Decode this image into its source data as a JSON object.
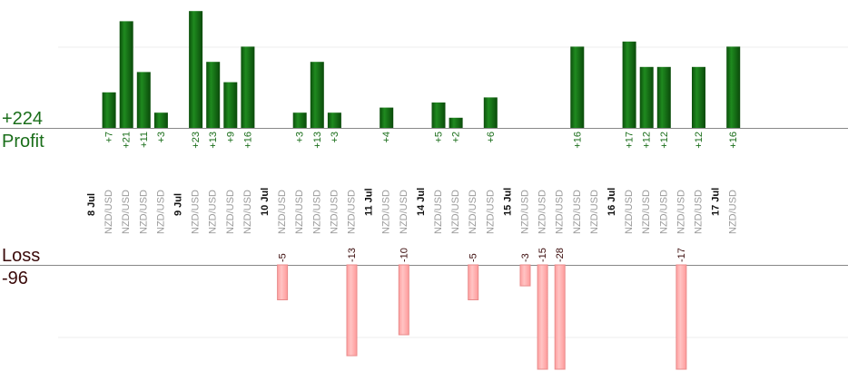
{
  "chart_data": {
    "type": "bar",
    "summary": {
      "profit_total": "+224",
      "profit_label": "Profit",
      "loss_label": "Loss",
      "loss_total": "-96"
    },
    "colors": {
      "profit_bar": "#1a7a1a",
      "profit_bar_dark": "#0b4f0b",
      "profit_text": "#1a6e1a",
      "loss_bar": "#ffb4b4",
      "loss_bar_edge": "#e88b8b",
      "loss_text": "#3a0a0a",
      "axis": "#888888"
    },
    "profit_ylim": [
      0,
      16
    ],
    "loss_ylim": [
      0,
      15
    ],
    "days": [
      {
        "date": "8 Jul",
        "bars": [
          {
            "pair": "NZD/USD",
            "value": 7
          },
          {
            "pair": "NZD/USD",
            "value": 21
          },
          {
            "pair": "NZD/USD",
            "value": 11
          },
          {
            "pair": "NZD/USD",
            "value": 3
          }
        ]
      },
      {
        "date": "9 Jul",
        "bars": [
          {
            "pair": "NZD/USD",
            "value": 23
          },
          {
            "pair": "NZD/USD",
            "value": 13
          },
          {
            "pair": "NZD/USD",
            "value": 9
          },
          {
            "pair": "NZD/USD",
            "value": 16
          }
        ]
      },
      {
        "date": "10 Jul",
        "bars": [
          {
            "pair": "NZD/USD",
            "value": -5
          },
          {
            "pair": "NZD/USD",
            "value": 3
          },
          {
            "pair": "NZD/USD",
            "value": 13
          },
          {
            "pair": "NZD/USD",
            "value": 3
          },
          {
            "pair": "NZD/USD",
            "value": -13
          }
        ]
      },
      {
        "date": "11 Jul",
        "bars": [
          {
            "pair": "NZD/USD",
            "value": 4
          },
          {
            "pair": "NZD/USD",
            "value": -10
          }
        ]
      },
      {
        "date": "14 Jul",
        "bars": [
          {
            "pair": "NZD/USD",
            "value": 5
          },
          {
            "pair": "NZD/USD",
            "value": 2
          },
          {
            "pair": "NZD/USD",
            "value": -5
          },
          {
            "pair": "NZD/USD",
            "value": 6
          }
        ]
      },
      {
        "date": "15 Jul",
        "bars": [
          {
            "pair": "NZD/USD",
            "value": -3
          },
          {
            "pair": "NZD/USD",
            "value": -15
          },
          {
            "pair": "NZD/USD",
            "value": -28
          },
          {
            "pair": "NZD/USD",
            "value": 16
          },
          {
            "pair": "NZD/USD",
            "value": null
          }
        ]
      },
      {
        "date": "16 Jul",
        "bars": [
          {
            "pair": "NZD/USD",
            "value": 17
          },
          {
            "pair": "NZD/USD",
            "value": 12
          },
          {
            "pair": "NZD/USD",
            "value": 12
          },
          {
            "pair": "NZD/USD",
            "value": -17
          },
          {
            "pair": "NZD/USD",
            "value": 12
          }
        ]
      },
      {
        "date": "17 Jul",
        "bars": [
          {
            "pair": "NZD/USD",
            "value": 16
          }
        ]
      }
    ]
  }
}
